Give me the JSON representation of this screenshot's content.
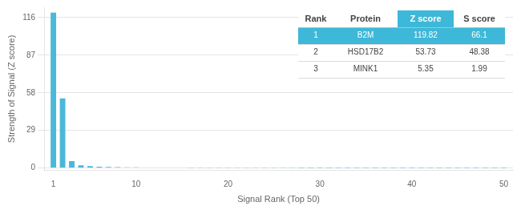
{
  "chart_data": {
    "type": "bar",
    "x": [
      1,
      2,
      3,
      4,
      5,
      6,
      7,
      8,
      9,
      10,
      11,
      12,
      13,
      14,
      15,
      16,
      17,
      18,
      19,
      20,
      21,
      22,
      23,
      24,
      25,
      26,
      27,
      28,
      29,
      30,
      31,
      32,
      33,
      34,
      35,
      36,
      37,
      38,
      39,
      40,
      41,
      42,
      43,
      44,
      45,
      46,
      47,
      48,
      49,
      50
    ],
    "values": [
      119.82,
      53.73,
      5.35,
      2.1,
      1.4,
      1.0,
      0.8,
      0.65,
      0.55,
      0.48,
      0.42,
      0.38,
      0.34,
      0.31,
      0.28,
      0.26,
      0.24,
      0.22,
      0.2,
      0.19,
      0.18,
      0.17,
      0.16,
      0.15,
      0.14,
      0.13,
      0.12,
      0.11,
      0.1,
      0.09,
      0.09,
      0.08,
      0.08,
      0.07,
      0.07,
      0.07,
      0.06,
      0.06,
      0.06,
      0.05,
      0.05,
      0.05,
      0.05,
      0.04,
      0.04,
      0.04,
      0.04,
      0.03,
      0.03,
      0.03
    ],
    "color": "#4ab8d8",
    "xlabel": "Signal Rank (Top 50)",
    "ylabel": "Strength of Signal (Z score)",
    "xlim": [
      0,
      51
    ],
    "xticks": [
      1,
      10,
      20,
      30,
      40,
      50
    ],
    "ylim": [
      -2,
      124
    ],
    "yticks": [
      0,
      29,
      58,
      87,
      116
    ],
    "grid": "y",
    "table": {
      "columns": [
        "Rank",
        "Protein",
        "Z score",
        "S score"
      ],
      "rows": [
        [
          "1",
          "B2M",
          "119.82",
          "66.1"
        ],
        [
          "2",
          "HSD17B2",
          "53.73",
          "48.38"
        ],
        [
          "3",
          "MINK1",
          "5.35",
          "1.99"
        ]
      ],
      "color": "#3db8d8"
    }
  }
}
